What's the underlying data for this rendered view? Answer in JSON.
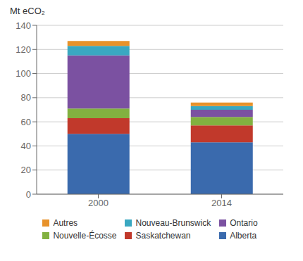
{
  "chart_data": {
    "type": "bar",
    "stacked": true,
    "ylabel": "Mt eCO₂",
    "categories": [
      "2000",
      "2014"
    ],
    "series": [
      {
        "name": "Alberta",
        "color": "#3A6AAD",
        "values": [
          50,
          43
        ]
      },
      {
        "name": "Saskatchewan",
        "color": "#C1392B",
        "values": [
          13,
          14
        ]
      },
      {
        "name": "Nouvelle-Écosse",
        "color": "#82B140",
        "values": [
          8,
          7
        ]
      },
      {
        "name": "Ontario",
        "color": "#7B51A1",
        "values": [
          44,
          6
        ]
      },
      {
        "name": "Nouveau-Brunswick",
        "color": "#3AA8C1",
        "values": [
          8,
          3
        ]
      },
      {
        "name": "Autres",
        "color": "#E8922A",
        "values": [
          4,
          3
        ]
      }
    ],
    "ylim": [
      0,
      140
    ],
    "yticks": [
      0,
      20,
      40,
      60,
      80,
      100,
      120,
      140
    ],
    "grid": true,
    "legend": "bottom"
  }
}
